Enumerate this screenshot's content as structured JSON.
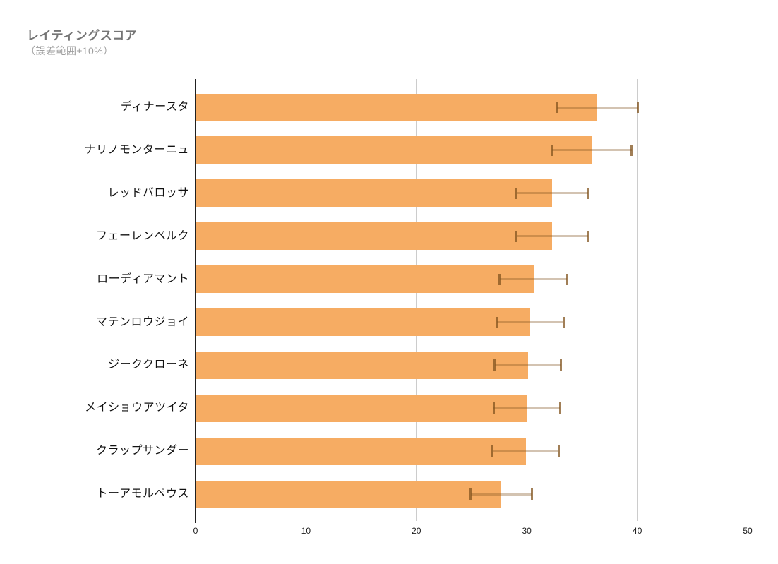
{
  "header": {
    "title": "レイティングスコア",
    "subtitle": "（誤差範囲±10%）"
  },
  "colors": {
    "bar": "#F6AC63",
    "gridline": "#cccccc",
    "zero_axis": "#212121",
    "error_bar_base": "#82541F",
    "title": "#757575",
    "subtitle": "#9e9e9e",
    "category_label": "#111111",
    "tick_label": "#1a1a1a",
    "background": "#ffffff"
  },
  "chart_data": {
    "type": "bar",
    "orientation": "horizontal",
    "title": "レイティングスコア",
    "subtitle": "（誤差範囲±10%）",
    "categories": [
      "ディナースタ",
      "ナリノモンターニュ",
      "レッドバロッサ",
      "フェーレンベルク",
      "ローディアマント",
      "マテンロウジョイ",
      "ジーククローネ",
      "メイショウアツイタ",
      "クラップサンダー",
      "トーアモルペウス"
    ],
    "values": [
      36.4,
      35.9,
      32.3,
      32.3,
      30.6,
      30.3,
      30.1,
      30.0,
      29.9,
      27.7
    ],
    "error_pct": 10,
    "xlim": [
      0,
      50
    ],
    "x_ticks": [
      0,
      10,
      20,
      30,
      40,
      50
    ],
    "grid": true,
    "legend": "none"
  }
}
